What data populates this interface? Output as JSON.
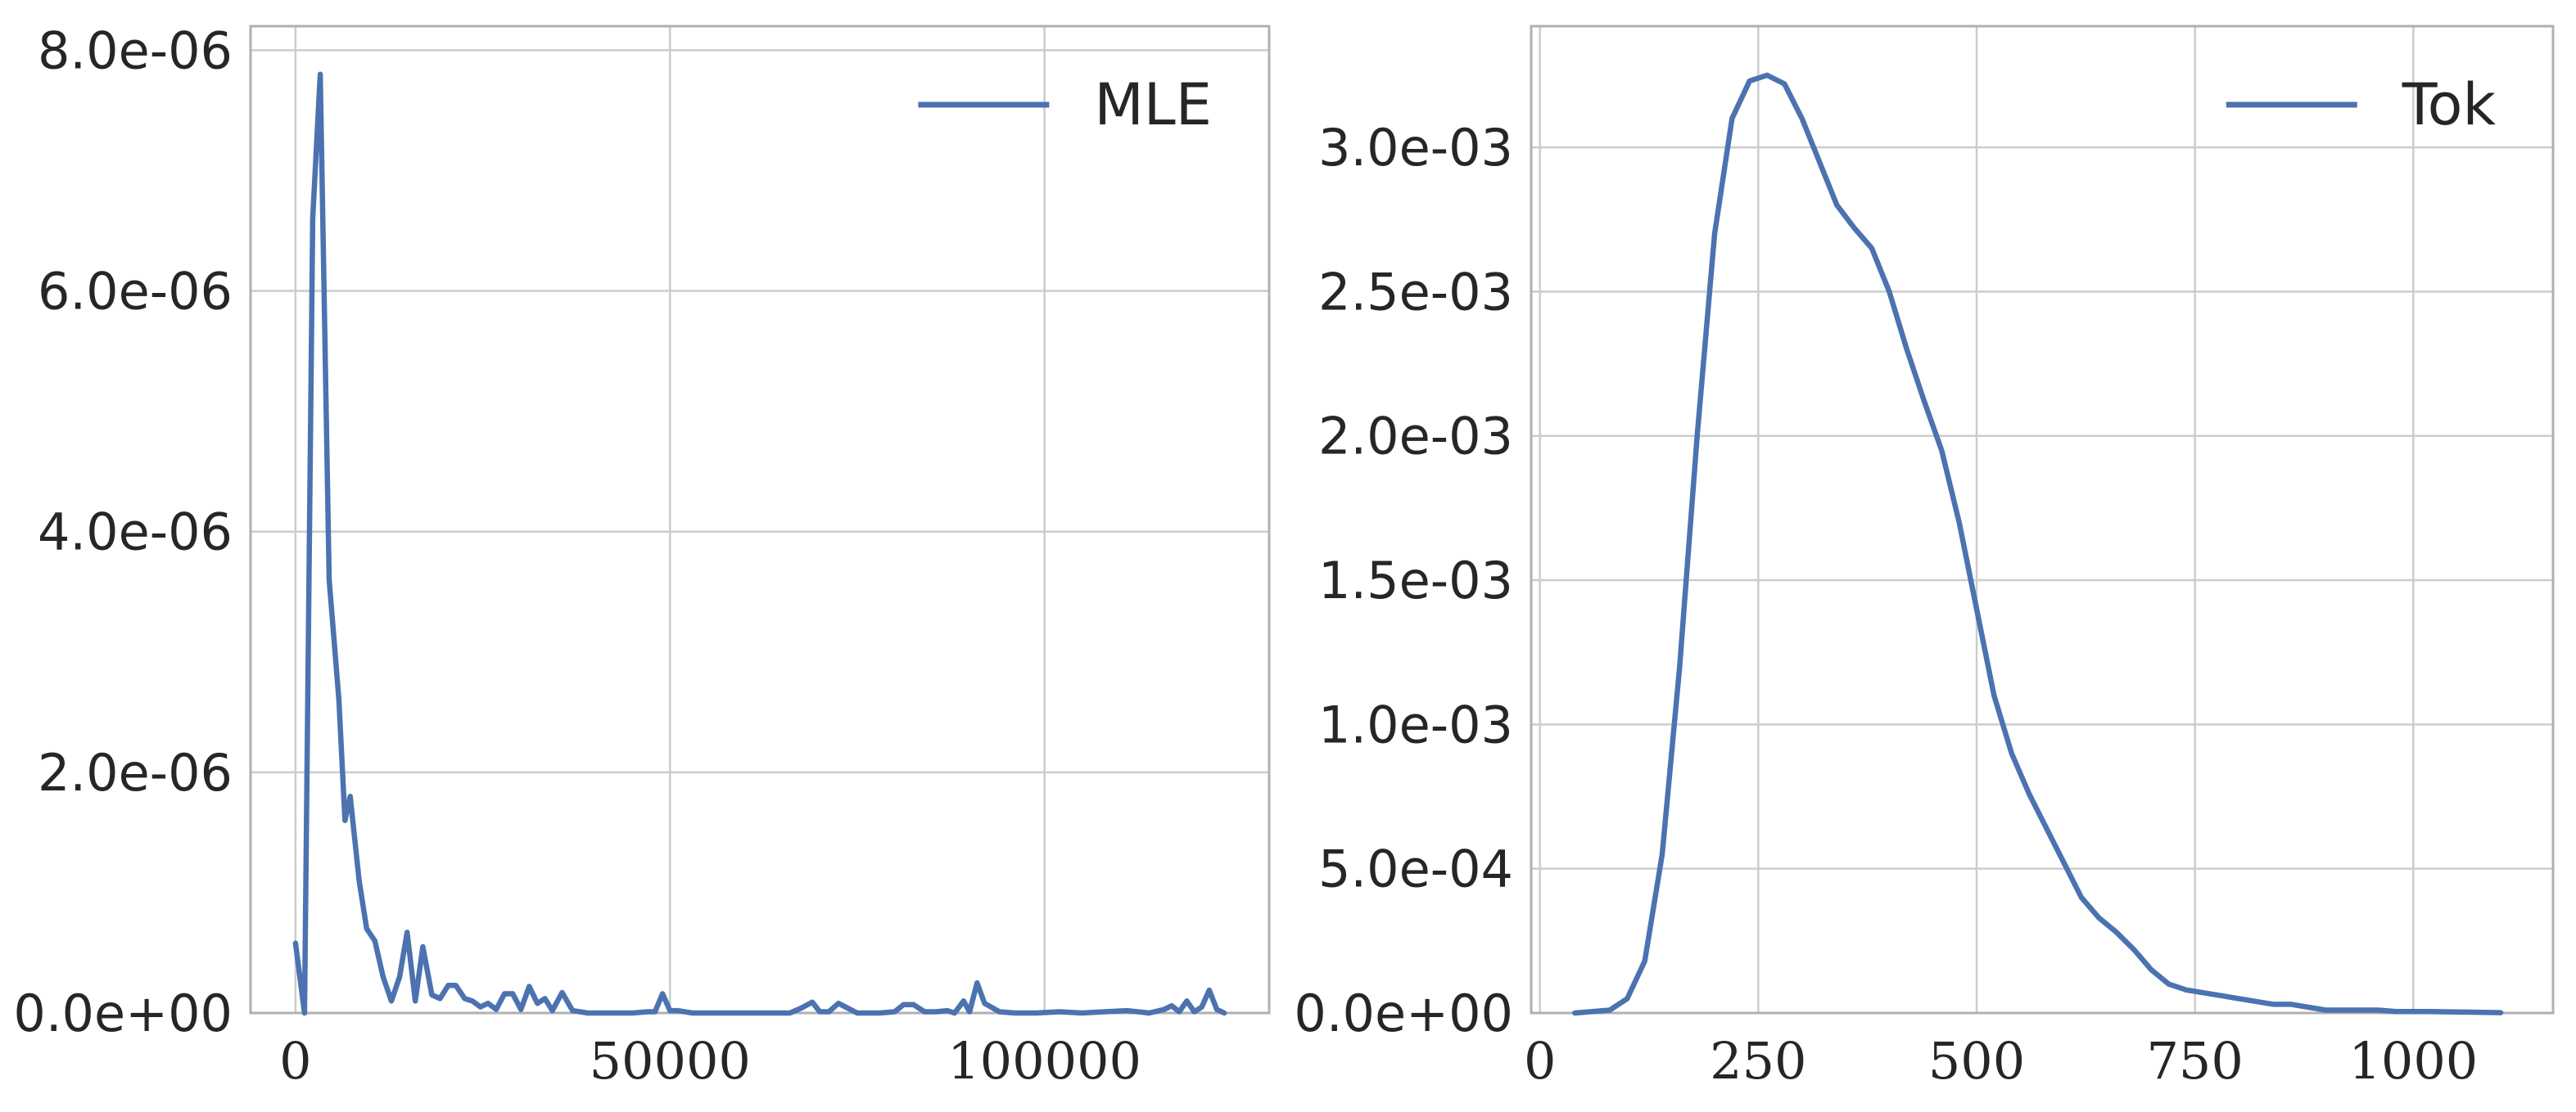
{
  "chart_data": [
    {
      "type": "line",
      "title": "",
      "xlabel": "",
      "ylabel": "",
      "xlim": [
        -6000,
        130000
      ],
      "ylim": [
        0,
        8.2e-06
      ],
      "grid": true,
      "legend_position": "top-right",
      "x_ticks": [
        0,
        50000,
        100000
      ],
      "x_tick_labels": [
        "0",
        "50000",
        "100000"
      ],
      "y_ticks": [
        0,
        2e-06,
        4e-06,
        6e-06,
        8e-06
      ],
      "y_tick_labels": [
        "0.0e+00",
        "2.0e-06",
        "4.0e-06",
        "6.0e-06",
        "8.0e-06"
      ],
      "series": [
        {
          "name": "MLE",
          "color": "#4c72b0",
          "x": [
            0,
            1200,
            2300,
            3300,
            4500,
            5800,
            6600,
            7300,
            8500,
            9500,
            10600,
            11700,
            12800,
            13900,
            14900,
            16000,
            17000,
            18200,
            19300,
            20400,
            21400,
            22600,
            23600,
            24700,
            25700,
            26800,
            27900,
            29000,
            30100,
            31200,
            32300,
            33300,
            34300,
            35600,
            37000,
            39000,
            41000,
            43000,
            45000,
            47000,
            48000,
            49000,
            50000,
            51000,
            53000,
            56000,
            60000,
            63000,
            66000,
            67500,
            69000,
            70000,
            71200,
            72500,
            75000,
            78000,
            80000,
            81200,
            82500,
            84000,
            85500,
            87000,
            88000,
            89200,
            90000,
            91000,
            92000,
            94000,
            96000,
            99000,
            102000,
            105000,
            108000,
            111000,
            114000,
            116000,
            117000,
            118000,
            119000,
            120000,
            121000,
            122000,
            123000,
            124000
          ],
          "values": [
            5.8e-07,
            0,
            6.6e-06,
            7.8e-06,
            3.6e-06,
            2.6e-06,
            1.6e-06,
            1.8e-06,
            1.1e-06,
            7e-07,
            6e-07,
            3e-07,
            1e-07,
            3e-07,
            6.7e-07,
            1e-07,
            5.5e-07,
            1.5e-07,
            1.2e-07,
            2.3e-07,
            2.3e-07,
            1.2e-07,
            1e-07,
            5e-08,
            8e-08,
            3e-08,
            1.6e-07,
            1.6e-07,
            3e-08,
            2.2e-07,
            8e-08,
            1.2e-07,
            2e-08,
            1.7e-07,
            2e-08,
            0,
            0,
            0,
            0,
            1e-08,
            1e-08,
            1.6e-07,
            2e-08,
            2e-08,
            0,
            0,
            0,
            0,
            0,
            4e-08,
            9e-08,
            1e-08,
            1e-08,
            8e-08,
            0,
            0,
            1e-08,
            7e-08,
            7e-08,
            1e-08,
            1e-08,
            2e-08,
            0,
            1e-07,
            1e-08,
            2.5e-07,
            8e-08,
            1e-08,
            0,
            0,
            1e-08,
            0,
            1e-08,
            2e-08,
            0,
            3e-08,
            6e-08,
            1e-08,
            1e-07,
            1e-08,
            5e-08,
            1.9e-07,
            3e-08,
            0
          ]
        }
      ]
    },
    {
      "type": "line",
      "title": "",
      "xlabel": "",
      "ylabel": "",
      "xlim": [
        -10,
        1160
      ],
      "ylim": [
        0,
        0.00342
      ],
      "grid": true,
      "legend_position": "top-right",
      "x_ticks": [
        0,
        250,
        500,
        750,
        1000
      ],
      "x_tick_labels": [
        "0",
        "250",
        "500",
        "750",
        "1000"
      ],
      "y_ticks": [
        0,
        0.0005,
        0.001,
        0.0015,
        0.002,
        0.0025,
        0.003
      ],
      "y_tick_labels": [
        "0.0e+00",
        "5.0e-04",
        "1.0e-03",
        "1.5e-03",
        "2.0e-03",
        "2.5e-03",
        "3.0e-03"
      ],
      "series": [
        {
          "name": "Tok",
          "color": "#4c72b0",
          "x": [
            40,
            80,
            100,
            120,
            140,
            160,
            180,
            200,
            220,
            240,
            260,
            280,
            300,
            320,
            340,
            360,
            380,
            400,
            420,
            440,
            460,
            480,
            500,
            520,
            540,
            560,
            580,
            600,
            620,
            640,
            660,
            680,
            700,
            720,
            740,
            760,
            780,
            800,
            820,
            840,
            860,
            880,
            900,
            920,
            940,
            960,
            980,
            1000,
            1020,
            1040,
            1060,
            1080,
            1100
          ],
          "values": [
            0.0,
            1e-05,
            5e-05,
            0.00018,
            0.00055,
            0.0012,
            0.002,
            0.0027,
            0.0031,
            0.00323,
            0.00325,
            0.00322,
            0.0031,
            0.00295,
            0.0028,
            0.00272,
            0.00265,
            0.0025,
            0.0023,
            0.00212,
            0.00195,
            0.0017,
            0.0014,
            0.0011,
            0.0009,
            0.00076,
            0.00064,
            0.00052,
            0.0004,
            0.00033,
            0.00028,
            0.00022,
            0.00015,
            0.0001,
            8e-05,
            7e-05,
            6e-05,
            5e-05,
            4e-05,
            3e-05,
            3e-05,
            2e-05,
            1e-05,
            1e-05,
            1e-05,
            1e-05,
            5e-06,
            5e-06,
            5e-06,
            4e-06,
            3e-06,
            2e-06,
            1e-06
          ]
        }
      ]
    }
  ]
}
